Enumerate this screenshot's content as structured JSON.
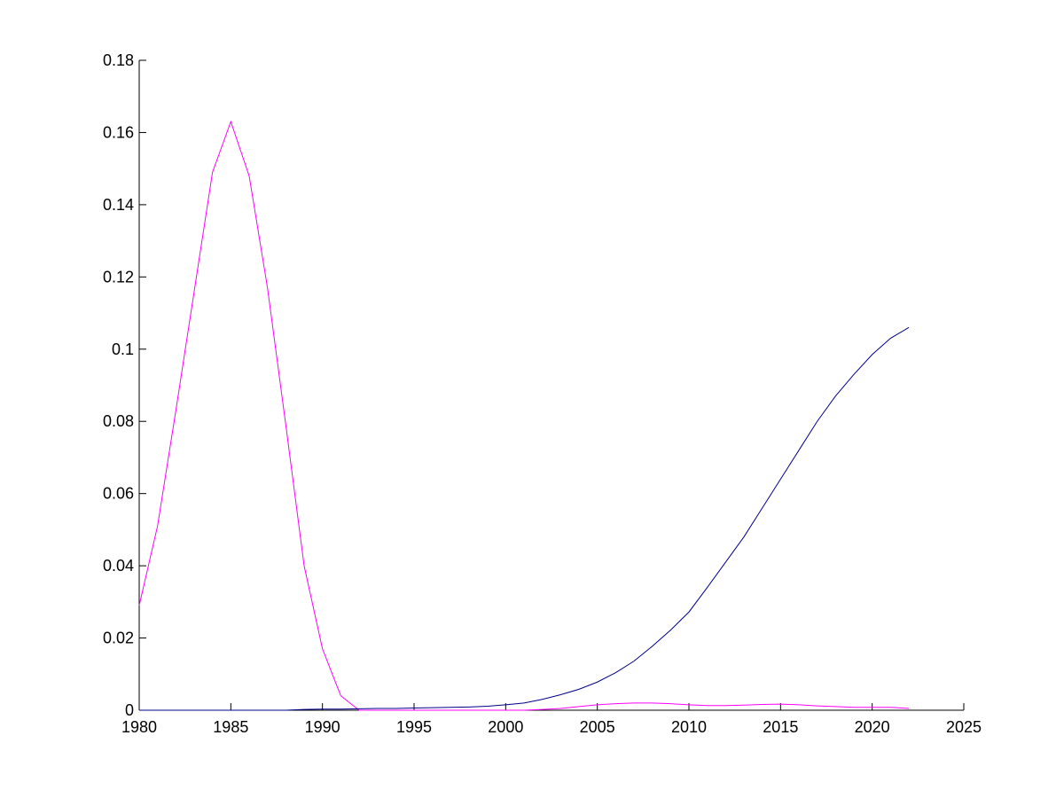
{
  "chart_data": {
    "type": "line",
    "x": [
      1980,
      1981,
      1982,
      1983,
      1984,
      1985,
      1986,
      1987,
      1988,
      1989,
      1990,
      1991,
      1992,
      1993,
      1994,
      1995,
      1996,
      1997,
      1998,
      1999,
      2000,
      2001,
      2002,
      2003,
      2004,
      2005,
      2006,
      2007,
      2008,
      2009,
      2010,
      2011,
      2012,
      2013,
      2014,
      2015,
      2016,
      2017,
      2018,
      2019,
      2020,
      2021,
      2022
    ],
    "series": [
      {
        "color": "#ff00ff",
        "values": [
          0.029,
          0.051,
          0.083,
          0.116,
          0.149,
          0.163,
          0.148,
          0.117,
          0.079,
          0.04,
          0.017,
          0.004,
          0,
          0,
          0,
          0,
          0,
          0,
          0,
          0,
          0,
          0,
          0.0002,
          0.0005,
          0.001,
          0.0015,
          0.0018,
          0.002,
          0.002,
          0.0018,
          0.0015,
          0.0013,
          0.0013,
          0.0014,
          0.0016,
          0.0017,
          0.0015,
          0.0012,
          0.001,
          0.0008,
          0.0008,
          0.0008,
          0.0005
        ]
      },
      {
        "color": "#00008b",
        "values": [
          0,
          0,
          0,
          0,
          0,
          0,
          0,
          0,
          0,
          0.0002,
          0.0003,
          0.0003,
          0.0004,
          0.0005,
          0.0005,
          0.0006,
          0.0007,
          0.0008,
          0.0009,
          0.0011,
          0.0015,
          0.002,
          0.003,
          0.0043,
          0.0058,
          0.0078,
          0.0104,
          0.0136,
          0.0177,
          0.0222,
          0.0272,
          0.034,
          0.041,
          0.048,
          0.056,
          0.064,
          0.072,
          0.08,
          0.087,
          0.093,
          0.0985,
          0.103,
          0.106
        ]
      }
    ],
    "xlim": [
      1980,
      2025
    ],
    "xticks": [
      1980,
      1985,
      1990,
      1995,
      2000,
      2005,
      2010,
      2015,
      2020,
      2025
    ],
    "ylim": [
      0,
      0.18
    ],
    "yticks": [
      0,
      0.02,
      0.04,
      0.06,
      0.08,
      0.1,
      0.12,
      0.14,
      0.16,
      0.18
    ]
  }
}
